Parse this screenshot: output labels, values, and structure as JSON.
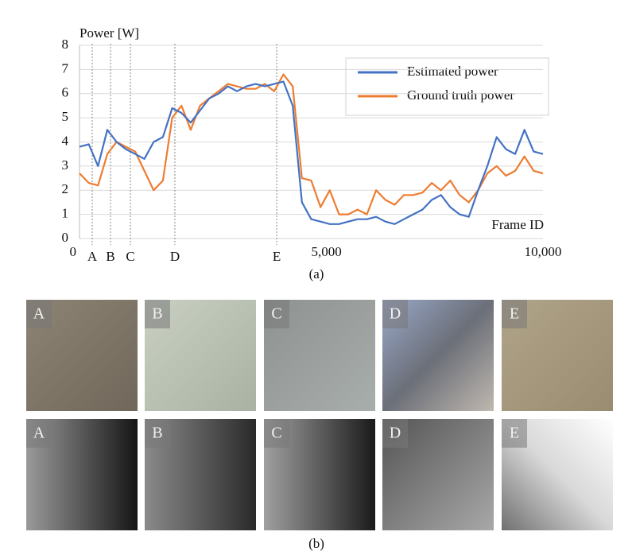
{
  "chart_data": {
    "type": "line",
    "ylabel": "Power [W]",
    "xlabel": "Frame ID",
    "x": [
      0,
      200,
      400,
      600,
      800,
      1000,
      1200,
      1400,
      1600,
      1800,
      2000,
      2200,
      2400,
      2600,
      2800,
      3000,
      3200,
      3400,
      3600,
      3800,
      4000,
      4200,
      4400,
      4600,
      4800,
      5000,
      5200,
      5400,
      5600,
      5800,
      6000,
      6200,
      6400,
      6600,
      6800,
      7000,
      7200,
      7400,
      7600,
      7800,
      8000,
      8200,
      8400,
      8600,
      8800,
      9000,
      9200,
      9400,
      9600,
      9800,
      10000
    ],
    "series": [
      {
        "name": "Estimated power",
        "color": "#4472c4",
        "values": [
          3.8,
          3.9,
          3.0,
          4.5,
          4.0,
          3.7,
          3.5,
          3.3,
          4.0,
          4.2,
          5.4,
          5.2,
          4.8,
          5.3,
          5.8,
          6.0,
          6.3,
          6.1,
          6.3,
          6.4,
          6.3,
          6.4,
          6.5,
          5.5,
          1.5,
          0.8,
          0.7,
          0.6,
          0.6,
          0.7,
          0.8,
          0.8,
          0.9,
          0.7,
          0.6,
          0.8,
          1.0,
          1.2,
          1.6,
          1.8,
          1.3,
          1.0,
          0.9,
          2.0,
          3.0,
          4.2,
          3.7,
          3.5,
          4.5,
          3.6,
          3.5
        ]
      },
      {
        "name": "Ground truth power",
        "color": "#ed7d31",
        "values": [
          2.7,
          2.3,
          2.2,
          3.5,
          4.0,
          3.8,
          3.6,
          2.8,
          2.0,
          2.4,
          5.0,
          5.5,
          4.5,
          5.5,
          5.8,
          6.1,
          6.4,
          6.3,
          6.2,
          6.2,
          6.4,
          6.1,
          6.8,
          6.3,
          2.5,
          2.4,
          1.3,
          2.0,
          1.0,
          1.0,
          1.2,
          1.0,
          2.0,
          1.6,
          1.4,
          1.8,
          1.8,
          1.9,
          2.3,
          2.0,
          2.4,
          1.8,
          1.5,
          2.0,
          2.7,
          3.0,
          2.6,
          2.8,
          3.4,
          2.8,
          2.7
        ]
      }
    ],
    "xlim": [
      0,
      10000
    ],
    "ylim": [
      0,
      8
    ],
    "xticks": [
      0,
      {
        "value": 5000,
        "label": "5,000"
      },
      {
        "value": 10000,
        "label": "10,000"
      }
    ],
    "yticks": [
      0,
      1,
      2,
      3,
      4,
      5,
      6,
      7,
      8
    ],
    "grid": true,
    "legend": "top-right",
    "markers": [
      {
        "label": "A",
        "x": 274
      },
      {
        "label": "B",
        "x": 669
      },
      {
        "label": "C",
        "x": 1098
      },
      {
        "label": "D",
        "x": 2058
      },
      {
        "label": "E",
        "x": 4254
      }
    ]
  },
  "captions": {
    "a": "(a)",
    "b": "(b)"
  },
  "thumbnails": {
    "top_labels": [
      "A",
      "B",
      "C",
      "D",
      "E"
    ],
    "bottom_labels": [
      "A",
      "B",
      "C",
      "D",
      "E"
    ]
  }
}
